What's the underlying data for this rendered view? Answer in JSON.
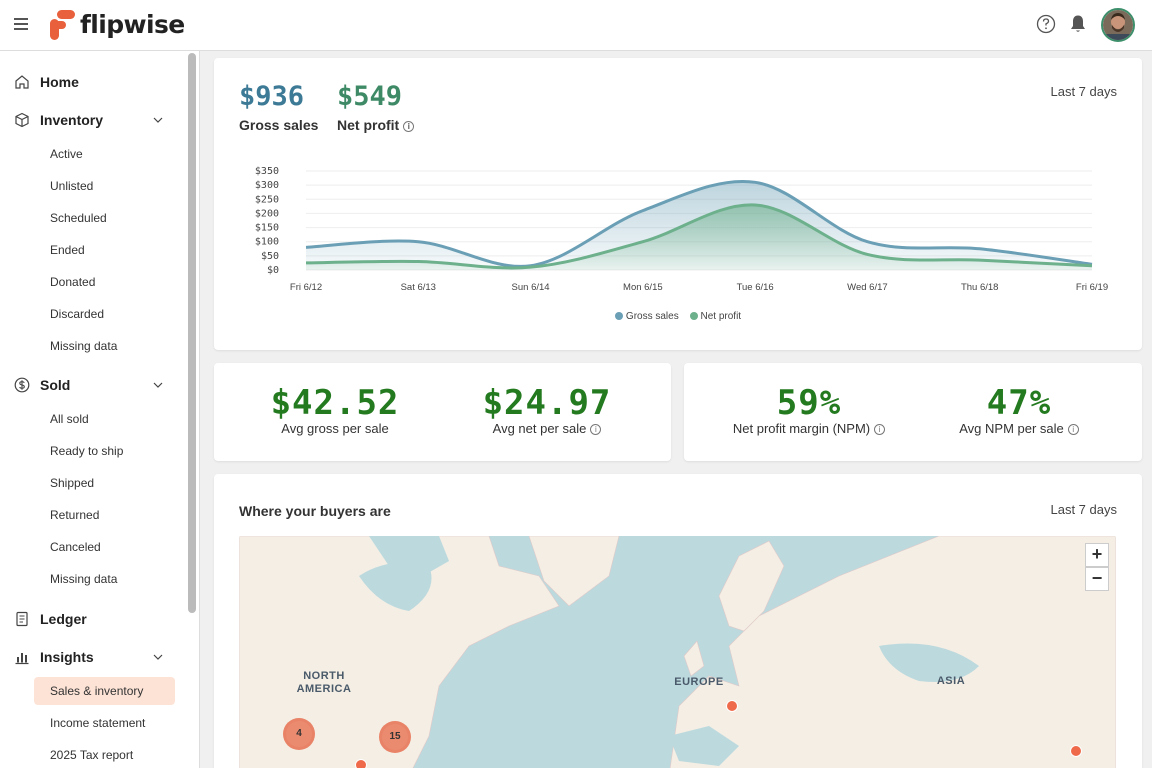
{
  "brand": {
    "name": "flipwise",
    "color": "#e8603c"
  },
  "sidebar": {
    "sections": [
      {
        "label": "Home",
        "icon": "home-icon"
      },
      {
        "label": "Inventory",
        "icon": "box-icon",
        "items": [
          "Active",
          "Unlisted",
          "Scheduled",
          "Ended",
          "Donated",
          "Discarded",
          "Missing data"
        ]
      },
      {
        "label": "Sold",
        "icon": "dollar-icon",
        "items": [
          "All sold",
          "Ready to ship",
          "Shipped",
          "Returned",
          "Canceled",
          "Missing data"
        ]
      },
      {
        "label": "Ledger",
        "icon": "ledger-icon"
      },
      {
        "label": "Insights",
        "icon": "chart-icon",
        "items": [
          "Sales & inventory",
          "Income statement",
          "2025 Tax report"
        ]
      }
    ],
    "active_item": "Sales & inventory"
  },
  "sales_card": {
    "gross_value": "$936",
    "gross_label": "Gross sales",
    "net_value": "$549",
    "net_label": "Net profit",
    "period": "Last 7 days"
  },
  "chart_data": {
    "type": "area",
    "categories": [
      "Fri 6/12",
      "Sat 6/13",
      "Sun 6/14",
      "Mon 6/15",
      "Tue 6/16",
      "Wed 6/17",
      "Thu 6/18",
      "Fri 6/19"
    ],
    "series": [
      {
        "name": "Gross sales",
        "values": [
          80,
          100,
          15,
          210,
          310,
          100,
          75,
          20
        ],
        "color": "#6a9fb5"
      },
      {
        "name": "Net profit",
        "values": [
          25,
          30,
          10,
          100,
          230,
          55,
          35,
          15
        ],
        "color": "#6db08c"
      }
    ],
    "yticks": [
      "$350",
      "$300",
      "$250",
      "$200",
      "$150",
      "$100",
      "$50",
      "$0"
    ],
    "ylim": [
      0,
      350
    ],
    "legend": "bottom"
  },
  "stats_left": [
    {
      "value": "$42.52",
      "label": "Avg gross per sale"
    },
    {
      "value": "$24.97",
      "label": "Avg net per sale"
    }
  ],
  "stats_right": [
    {
      "value": "59%",
      "label": "Net profit margin (NPM)"
    },
    {
      "value": "47%",
      "label": "Avg NPM per sale"
    }
  ],
  "map_card": {
    "title": "Where your buyers are",
    "period": "Last 7 days",
    "labels": [
      "NORTH\nAMERICA",
      "EUROPE",
      "ASIA"
    ],
    "clusters": [
      "4",
      "15"
    ],
    "zoom_in": "+",
    "zoom_out": "−"
  },
  "info_glyph": "i"
}
